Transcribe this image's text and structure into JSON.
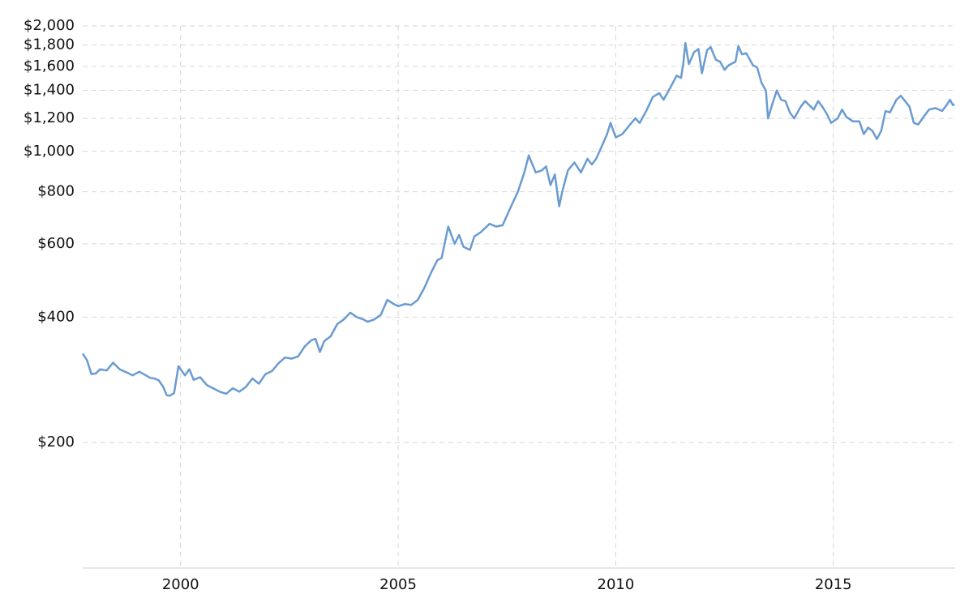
{
  "chart_data": {
    "type": "line",
    "log_scale": true,
    "grid": true,
    "x": [
      1997.75,
      1997.85,
      1997.95,
      1998.05,
      1998.15,
      1998.3,
      1998.45,
      1998.6,
      1998.75,
      1998.9,
      1999.05,
      1999.2,
      1999.3,
      1999.4,
      1999.5,
      1999.6,
      1999.68,
      1999.75,
      1999.85,
      1999.95,
      2000.1,
      2000.2,
      2000.3,
      2000.45,
      2000.6,
      2000.75,
      2000.9,
      2001.05,
      2001.2,
      2001.35,
      2001.5,
      2001.65,
      2001.8,
      2001.95,
      2002.1,
      2002.25,
      2002.4,
      2002.55,
      2002.7,
      2002.85,
      2003.0,
      2003.1,
      2003.2,
      2003.3,
      2003.45,
      2003.6,
      2003.75,
      2003.9,
      2004.05,
      2004.2,
      2004.3,
      2004.45,
      2004.6,
      2004.75,
      2004.9,
      2005.0,
      2005.15,
      2005.3,
      2005.45,
      2005.6,
      2005.75,
      2005.9,
      2006.0,
      2006.15,
      2006.3,
      2006.4,
      2006.5,
      2006.65,
      2006.75,
      2006.9,
      2007.1,
      2007.25,
      2007.4,
      2007.6,
      2007.75,
      2007.9,
      2008.0,
      2008.16,
      2008.3,
      2008.4,
      2008.5,
      2008.6,
      2008.7,
      2008.77,
      2008.9,
      2009.05,
      2009.2,
      2009.35,
      2009.45,
      2009.55,
      2009.7,
      2009.8,
      2009.88,
      2010.0,
      2010.15,
      2010.3,
      2010.45,
      2010.55,
      2010.7,
      2010.85,
      2011.0,
      2011.1,
      2011.25,
      2011.4,
      2011.5,
      2011.55,
      2011.6,
      2011.68,
      2011.8,
      2011.9,
      2011.98,
      2012.1,
      2012.18,
      2012.3,
      2012.4,
      2012.5,
      2012.6,
      2012.75,
      2012.82,
      2012.9,
      2013.0,
      2013.15,
      2013.25,
      2013.35,
      2013.45,
      2013.5,
      2013.6,
      2013.7,
      2013.8,
      2013.9,
      2014.0,
      2014.1,
      2014.25,
      2014.35,
      2014.45,
      2014.55,
      2014.65,
      2014.75,
      2014.85,
      2014.95,
      2015.1,
      2015.2,
      2015.3,
      2015.45,
      2015.6,
      2015.7,
      2015.8,
      2015.9,
      2016.0,
      2016.1,
      2016.2,
      2016.3,
      2016.45,
      2016.55,
      2016.65,
      2016.75,
      2016.85,
      2016.95,
      2017.1,
      2017.2,
      2017.35,
      2017.5,
      2017.6,
      2017.68,
      2017.75,
      2017.78
    ],
    "series": [
      {
        "color": "#6a9bd1",
        "values": [
          327,
          315,
          292,
          293,
          300,
          298,
          311,
          300,
          295,
          290,
          296,
          290,
          286,
          285,
          282,
          272,
          260,
          259,
          263,
          305,
          290,
          300,
          283,
          287,
          275,
          270,
          265,
          262,
          270,
          265,
          272,
          285,
          277,
          292,
          297,
          310,
          320,
          318,
          322,
          340,
          352,
          355,
          330,
          350,
          360,
          385,
          395,
          410,
          400,
          395,
          390,
          395,
          405,
          440,
          430,
          425,
          430,
          428,
          440,
          470,
          510,
          548,
          555,
          660,
          600,
          630,
          590,
          580,
          625,
          640,
          670,
          660,
          665,
          740,
          800,
          890,
          978,
          890,
          900,
          920,
          830,
          880,
          738,
          800,
          900,
          940,
          890,
          960,
          930,
          960,
          1040,
          1100,
          1170,
          1080,
          1100,
          1150,
          1200,
          1170,
          1250,
          1350,
          1380,
          1330,
          1420,
          1520,
          1500,
          1620,
          1820,
          1620,
          1730,
          1760,
          1540,
          1750,
          1780,
          1660,
          1640,
          1570,
          1610,
          1640,
          1790,
          1710,
          1720,
          1610,
          1590,
          1460,
          1400,
          1200,
          1300,
          1400,
          1330,
          1320,
          1240,
          1200,
          1280,
          1320,
          1290,
          1260,
          1320,
          1280,
          1230,
          1170,
          1200,
          1260,
          1210,
          1180,
          1180,
          1100,
          1140,
          1120,
          1070,
          1120,
          1250,
          1240,
          1330,
          1360,
          1320,
          1280,
          1170,
          1160,
          1220,
          1260,
          1270,
          1250,
          1290,
          1330,
          1290,
          1300
        ]
      }
    ],
    "xlim": [
      1997.75,
      2017.8
    ],
    "xticks": [
      2000,
      2005,
      2010,
      2015
    ],
    "ylim": [
      100,
      2000
    ],
    "yticks": [
      {
        "value": 200,
        "label": "$200"
      },
      {
        "value": 400,
        "label": "$400"
      },
      {
        "value": 600,
        "label": "$600"
      },
      {
        "value": 800,
        "label": "$800"
      },
      {
        "value": 1000,
        "label": "$1,000"
      },
      {
        "value": 1200,
        "label": "$1,200"
      },
      {
        "value": 1400,
        "label": "$1,400"
      },
      {
        "value": 1600,
        "label": "$1,600"
      },
      {
        "value": 1800,
        "label": "$1,800"
      },
      {
        "value": 2000,
        "label": "$2,000"
      }
    ]
  }
}
